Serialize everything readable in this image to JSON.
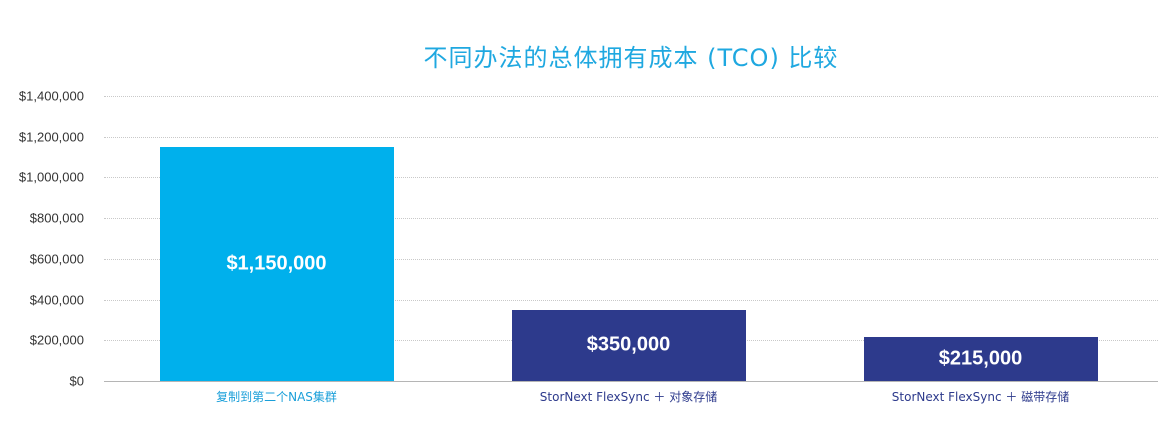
{
  "chart_data": {
    "type": "bar",
    "title": "不同办法的总体拥有成本 (TCO) 比较",
    "xlabel": "",
    "ylabel": "",
    "ylim": [
      0,
      1400000
    ],
    "yticks": [
      0,
      200000,
      400000,
      600000,
      800000,
      1000000,
      1200000,
      1400000
    ],
    "ytick_labels": [
      "$0",
      "$200,000",
      "$400,000",
      "$600,000",
      "$800,000",
      "$1,000,000",
      "$1,200,000",
      "$1,400,000"
    ],
    "grid": true,
    "categories": [
      "复制到第二个NAS集群",
      "StorNext FlexSync ＋ 对象存储",
      "StorNext FlexSync ＋ 磁带存储"
    ],
    "values": [
      1150000,
      350000,
      215000
    ],
    "data_labels": [
      "$1,150,000",
      "$350,000",
      "$215,000"
    ],
    "bar_colors": [
      "#00b0ec",
      "#2d3a8c",
      "#2d3a8c"
    ],
    "category_label_colors": [
      "#1a9fd9",
      "#2d3a8c",
      "#2d3a8c"
    ],
    "title_color": "#1fa8e0"
  }
}
